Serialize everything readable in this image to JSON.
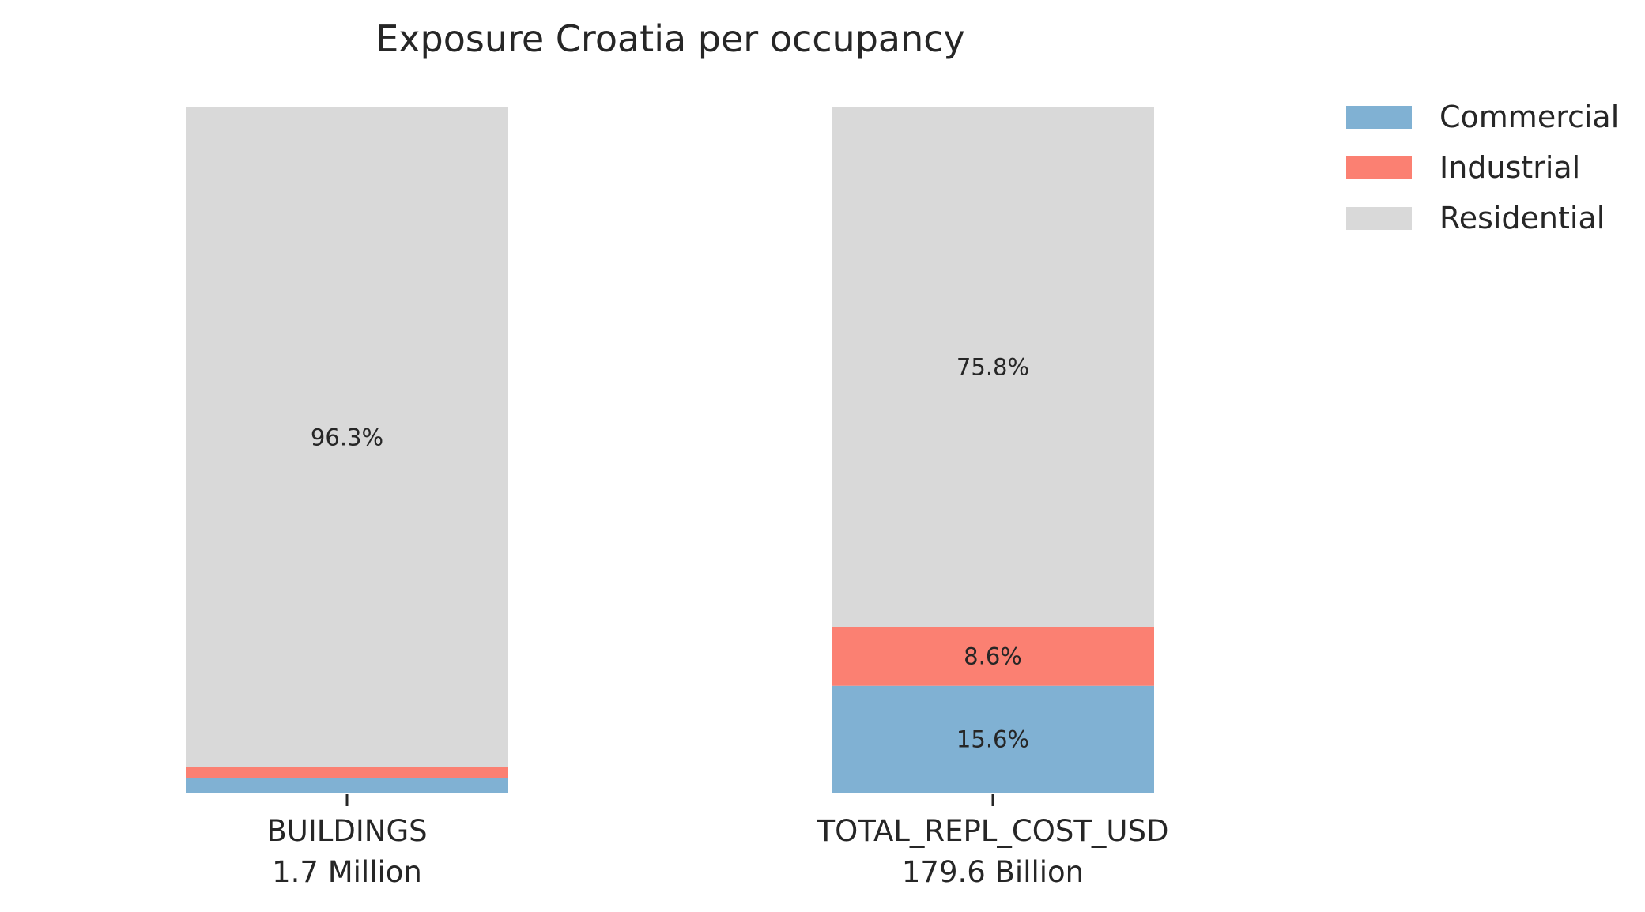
{
  "chart_data": {
    "type": "bar",
    "stacked": true,
    "percent_stacked": true,
    "title": "Exposure Croatia per occupancy",
    "xlabel": "",
    "ylabel": "",
    "ylim": [
      0,
      100
    ],
    "grid": false,
    "legend_position": "top-right",
    "categories": [
      "BUILDINGS",
      "TOTAL_REPL_COST_USD"
    ],
    "category_totals": [
      "1.7 Million",
      "179.6 Billion"
    ],
    "series": [
      {
        "name": "Commercial",
        "color": "#80b1d3",
        "values": [
          2.1,
          15.6
        ],
        "labels": [
          "",
          "15.6%"
        ]
      },
      {
        "name": "Industrial",
        "color": "#fb8072",
        "values": [
          1.6,
          8.6
        ],
        "labels": [
          "",
          "8.6%"
        ]
      },
      {
        "name": "Residential",
        "color": "#d9d9d9",
        "values": [
          96.3,
          75.8
        ],
        "labels": [
          "96.3%",
          "75.8%"
        ]
      }
    ]
  }
}
